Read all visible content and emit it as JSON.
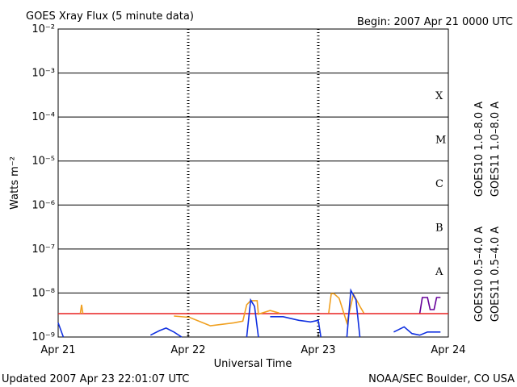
{
  "chart_data": {
    "type": "line",
    "title": "GOES Xray Flux (5 minute data)",
    "subtitle": "Begin:  2007 Apr 21 0000 UTC",
    "x_label": "Universal Time",
    "y_label": "Watts m⁻²",
    "footer_left": "Updated 2007 Apr 23 22:01:07 UTC",
    "footer_right": "NOAA/SEC Boulder, CO USA",
    "log_scale": true,
    "grid": true,
    "xlim": [
      0,
      3
    ],
    "xticks": [
      {
        "value": 0,
        "label": "Apr 21"
      },
      {
        "value": 1,
        "label": "Apr 22"
      },
      {
        "value": 2,
        "label": "Apr 23"
      },
      {
        "value": 3,
        "label": "Apr 24"
      }
    ],
    "ylim": [
      1e-09,
      0.01
    ],
    "yticks": [
      {
        "value": 1e-09,
        "label": "10⁻⁹"
      },
      {
        "value": 1e-08,
        "label": "10⁻⁸"
      },
      {
        "value": 1e-07,
        "label": "10⁻⁷"
      },
      {
        "value": 1e-06,
        "label": "10⁻⁶"
      },
      {
        "value": 1e-05,
        "label": "10⁻⁵"
      },
      {
        "value": 0.0001,
        "label": "10⁻⁴"
      },
      {
        "value": 0.001,
        "label": "10⁻³"
      },
      {
        "value": 0.01,
        "label": "10⁻²"
      }
    ],
    "flare_classes": [
      "X",
      "M",
      "C",
      "B",
      "A"
    ],
    "series": [
      {
        "name": "GOES10 1.0–8.0 A",
        "color": "#660099",
        "x": [
          2.78,
          2.8,
          2.84,
          2.86,
          2.89,
          2.91,
          2.94
        ],
        "values": [
          3.4e-09,
          7.9e-09,
          7.9e-09,
          4.2e-09,
          4.2e-09,
          7.9e-09,
          7.9e-09
        ]
      },
      {
        "name": "GOES11 1.0–8.0 A",
        "color": "#e82020",
        "x": [
          0,
          3
        ],
        "values": [
          3.4e-09,
          3.4e-09
        ]
      },
      {
        "name": "GOES10 0.5–4.0 A",
        "color": "#f0a020",
        "x": [
          0.17,
          0.18,
          0.19,
          0.5,
          0.89,
          1.01,
          1.17,
          1.35,
          1.42,
          1.45,
          1.48,
          1.53,
          1.54,
          1.63,
          1.7,
          1.9,
          2.08,
          2.1,
          2.12,
          2.16,
          2.22,
          2.27,
          2.32,
          2.35
        ],
        "values": [
          3.4e-09,
          5.4e-09,
          3.4e-09,
          null,
          3e-09,
          2.8e-09,
          1.8e-09,
          2.1e-09,
          2.3e-09,
          5.4e-09,
          6.7e-09,
          6.7e-09,
          3.3e-09,
          4e-09,
          3.5e-09,
          null,
          3.5e-09,
          9.7e-09,
          9.7e-09,
          7.6e-09,
          2.1e-09,
          9.4e-09,
          5e-09,
          3.5e-09
        ]
      },
      {
        "name": "GOES11 0.5–4.0 A",
        "color": "#1030e0",
        "x": [
          0,
          0.04,
          0.2,
          0.71,
          0.78,
          0.83,
          0.89,
          0.95,
          1.2,
          1.45,
          1.48,
          1.51,
          1.54,
          1.6,
          1.63,
          1.73,
          1.85,
          1.94,
          2.0,
          2.02,
          2.1,
          2.22,
          2.25,
          2.29,
          2.32,
          2.45,
          2.58,
          2.66,
          2.72,
          2.78,
          2.84,
          2.94
        ],
        "values": [
          2.1e-09,
          1e-09,
          null,
          1.1e-09,
          1.4e-09,
          1.6e-09,
          1.3e-09,
          1e-09,
          null,
          1e-09,
          6.9e-09,
          5e-09,
          1e-09,
          null,
          2.9e-09,
          2.9e-09,
          2.4e-09,
          2.2e-09,
          2.4e-09,
          1e-09,
          null,
          1e-09,
          1.15e-08,
          7e-09,
          1e-09,
          null,
          1.3e-09,
          1.7e-09,
          1.2e-09,
          1.1e-09,
          1.3e-09,
          1.3e-09
        ]
      }
    ]
  }
}
